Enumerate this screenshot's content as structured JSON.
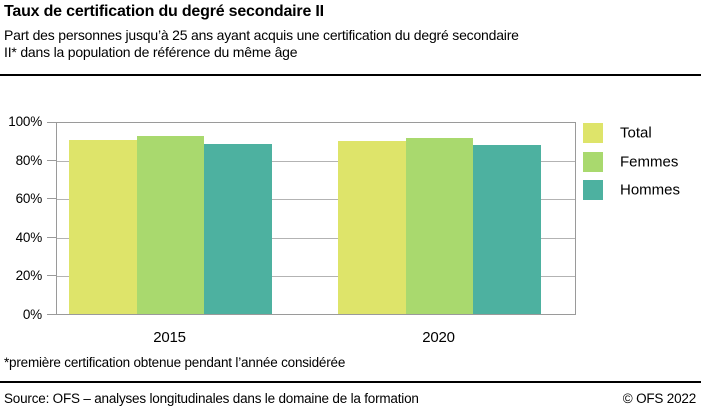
{
  "header": {
    "title": "Taux de certification du degré secondaire II",
    "subtitle_line1": "Part des personnes jusqu’à 25 ans ayant acquis une certification du degré secondaire",
    "subtitle_line2": "II* dans la population de référence du même âge"
  },
  "chart_data": {
    "type": "bar",
    "categories": [
      "2015",
      "2020"
    ],
    "series": [
      {
        "name": "Total",
        "color": "#dee46a",
        "values": [
          91,
          90.5
        ]
      },
      {
        "name": "Femmes",
        "color": "#a9d96e",
        "values": [
          93,
          92
        ]
      },
      {
        "name": "Hommes",
        "color": "#4db1a0",
        "values": [
          89,
          88.5
        ]
      }
    ],
    "ylabel": "",
    "xlabel": "",
    "ylim": [
      0,
      100
    ],
    "ytick_values": [
      0,
      20,
      40,
      60,
      80,
      100
    ],
    "ytick_labels": [
      "0%",
      "20%",
      "40%",
      "60%",
      "80%",
      "100%"
    ],
    "grid": true,
    "legend_position": "right"
  },
  "footnote": "*première certification obtenue pendant l’année considérée",
  "footer": {
    "source": "Source: OFS – analyses longitudinales dans le domaine de la formation",
    "copyright": "© OFS 2022"
  },
  "colors": {
    "gridline": "#b3b3b3",
    "axis_border": "#9a9a9a",
    "rule": "#000000"
  }
}
